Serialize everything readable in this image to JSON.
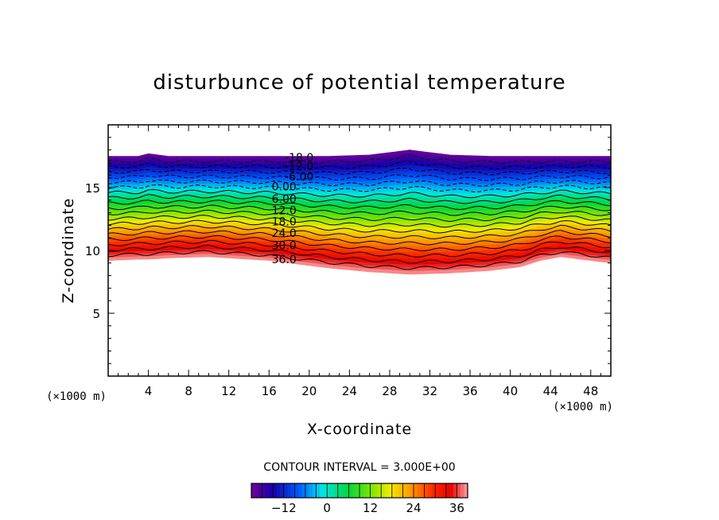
{
  "chart_data": {
    "type": "contour",
    "title": "disturbunce of potential temperature",
    "xlabel": "X-coordinate",
    "ylabel": "Z-coordinate",
    "x_unit": "(×1000 m)",
    "y_unit": "(×1000 m)",
    "xlim": [
      0,
      50
    ],
    "ylim": [
      0,
      20
    ],
    "xticks": [
      4,
      8,
      12,
      16,
      20,
      24,
      28,
      32,
      36,
      40,
      44,
      48
    ],
    "yticks": [
      5,
      10,
      15
    ],
    "contour_interval_text": "CONTOUR INTERVAL = 3.000E+00",
    "contour_interval": 3.0,
    "value_range": [
      -21,
      39
    ],
    "contour_labels": [
      {
        "text": "-18.0",
        "value": -18,
        "x": 19,
        "z": 17.4
      },
      {
        "text": "-12.0",
        "value": -12,
        "x": 19,
        "z": 16.7
      },
      {
        "text": "-6.00",
        "value": -6,
        "x": 19,
        "z": 15.9
      },
      {
        "text": "0.00",
        "value": 0,
        "x": 17.5,
        "z": 15.1
      },
      {
        "text": "6.00",
        "value": 6,
        "x": 17.5,
        "z": 14.1
      },
      {
        "text": "12.0",
        "value": 12,
        "x": 17.5,
        "z": 13.2
      },
      {
        "text": "18.0",
        "value": 18,
        "x": 17.5,
        "z": 12.3
      },
      {
        "text": "24.0",
        "value": 24,
        "x": 17.5,
        "z": 11.4
      },
      {
        "text": "30.0",
        "value": 30,
        "x": 17.5,
        "z": 10.4
      },
      {
        "text": "36.0",
        "value": 36,
        "x": 17.5,
        "z": 9.3
      }
    ],
    "field_x": [
      0,
      3,
      4,
      6,
      10,
      16,
      22,
      26,
      30,
      34,
      38,
      41,
      43,
      45,
      47,
      50
    ],
    "top_boundary_z": [
      17.5,
      17.5,
      17.7,
      17.5,
      17.5,
      17.5,
      17.5,
      17.6,
      18.0,
      17.6,
      17.5,
      17.5,
      17.5,
      17.5,
      17.5,
      17.5
    ],
    "bottom_boundary_z": [
      9.2,
      9.3,
      9.3,
      9.4,
      9.5,
      9.2,
      8.6,
      8.3,
      8.1,
      8.2,
      8.4,
      8.7,
      9.2,
      9.5,
      9.3,
      9.0
    ],
    "colorbar": {
      "ticks": [
        -12,
        0,
        12,
        24,
        36
      ],
      "tick_labels": [
        "−12",
        "0",
        "12",
        "24",
        "36"
      ]
    }
  }
}
